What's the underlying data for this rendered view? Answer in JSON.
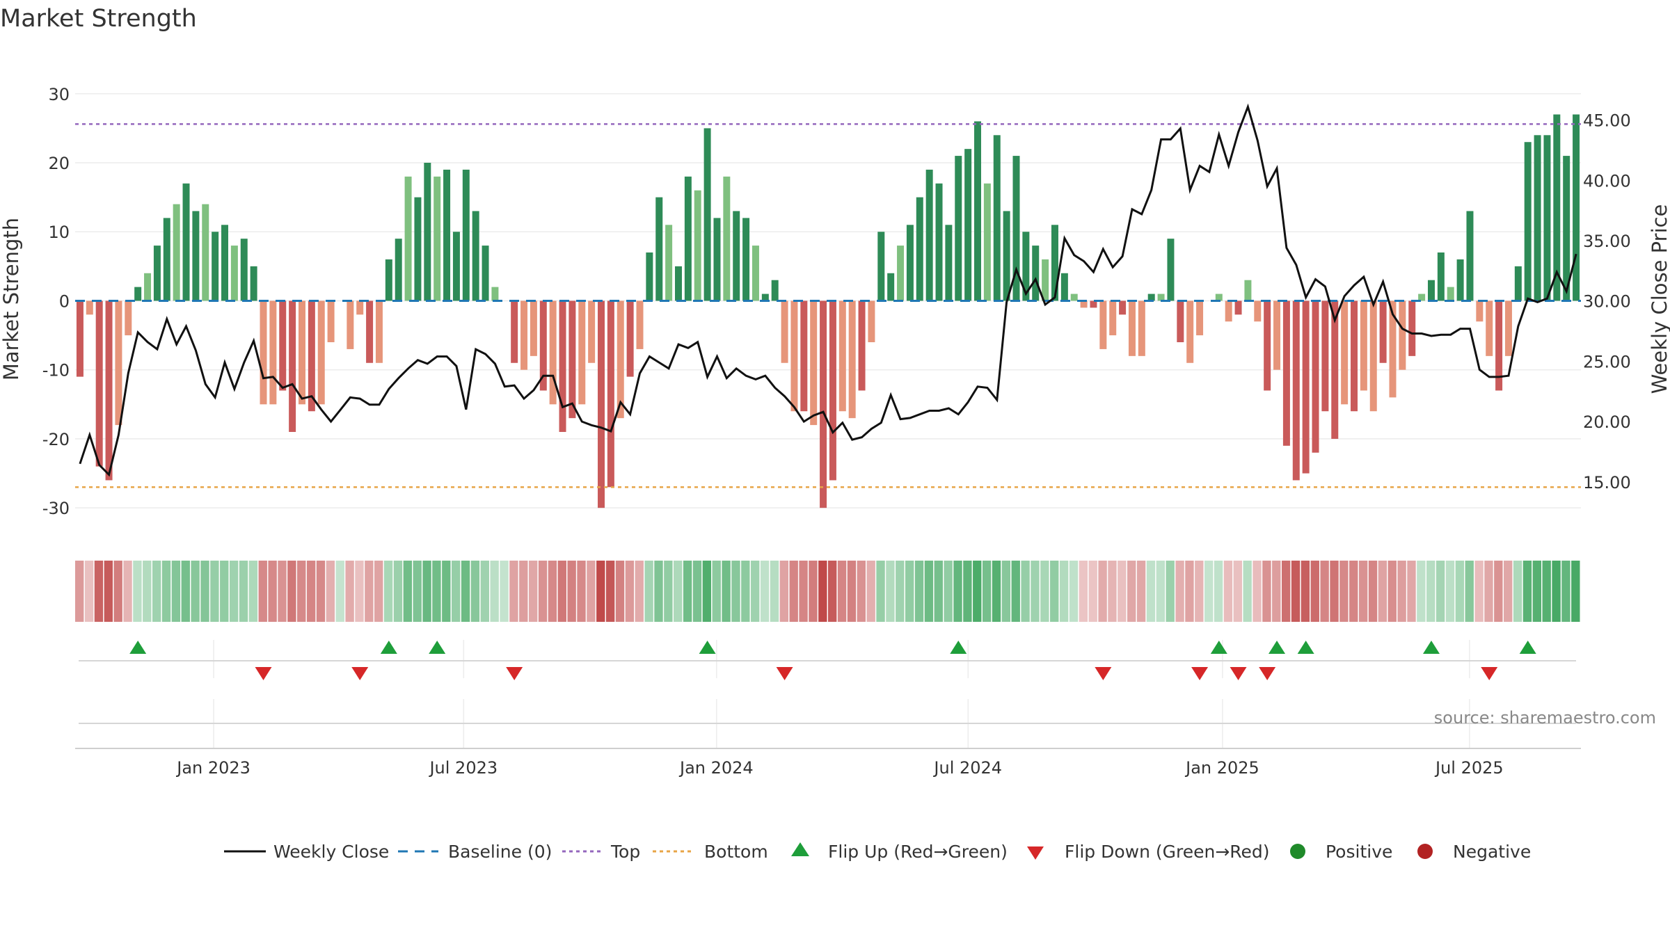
{
  "chart_data": {
    "type": "bar",
    "title": "Market Strength",
    "ylabel": "Market Strength",
    "y2label": "Weekly Close Price",
    "ylim": [
      -32,
      33
    ],
    "y2lim": [
      11.7,
      48.9
    ],
    "yticks": [
      30,
      20,
      10,
      0,
      -10,
      -20,
      -30
    ],
    "y2ticks": [
      "45.00",
      "40.00",
      "35.00",
      "30.00",
      "25.00",
      "20.00",
      "15.00"
    ],
    "top_line": 25.6,
    "bottom_line": -27.0,
    "baseline": 0,
    "xticks": [
      "Jan 2023",
      "Jul 2023",
      "Jan 2024",
      "Jul 2024",
      "Jan 2025",
      "Jul 2025"
    ],
    "strength": [
      -11,
      -2,
      -24,
      -26,
      -18,
      -5,
      2,
      4,
      8,
      12,
      14,
      17,
      13,
      14,
      10,
      11,
      8,
      9,
      5,
      -15,
      -15,
      -13,
      -19,
      -15,
      -16,
      -15,
      -6,
      0,
      -7,
      -2,
      -9,
      -9,
      6,
      9,
      18,
      15,
      20,
      18,
      19,
      10,
      19,
      13,
      8,
      2,
      0,
      -9,
      -10,
      -8,
      -13,
      -15,
      -19,
      -17,
      -15,
      -9,
      -30,
      -27,
      -17,
      -11,
      -7,
      7,
      15,
      11,
      5,
      18,
      16,
      25,
      12,
      18,
      13,
      12,
      8,
      1,
      3,
      -9,
      -16,
      -16,
      -18,
      -30,
      -26,
      -16,
      -17,
      -13,
      -6,
      10,
      4,
      8,
      11,
      15,
      19,
      17,
      11,
      21,
      22,
      26,
      17,
      24,
      13,
      21,
      10,
      8,
      6,
      11,
      4,
      1,
      -1,
      -1,
      -7,
      -5,
      -2,
      -8,
      -8,
      1,
      1,
      9,
      -6,
      -9,
      -5,
      0,
      1,
      -3,
      -2,
      3,
      -3,
      -13,
      -10,
      -21,
      -26,
      -25,
      -22,
      -16,
      -20,
      -15,
      -16,
      -13,
      -16,
      -9,
      -14,
      -10,
      -8,
      1,
      3,
      7,
      2,
      6,
      13,
      -3,
      -8,
      -13,
      -8,
      5,
      23,
      24,
      24,
      27,
      21,
      27
    ],
    "weekly_close": [
      16.5,
      18.9,
      16.4,
      15.6,
      18.9,
      24.0,
      27.4,
      26.6,
      26.0,
      28.5,
      26.4,
      27.9,
      25.9,
      23.1,
      22.0,
      24.9,
      22.7,
      24.9,
      26.7,
      23.6,
      23.7,
      22.8,
      23.1,
      21.9,
      22.1,
      21.0,
      20.0,
      21.0,
      22.0,
      21.9,
      21.4,
      21.4,
      22.7,
      23.6,
      24.4,
      25.1,
      24.8,
      25.4,
      25.4,
      24.6,
      21.0,
      26.0,
      25.6,
      24.8,
      22.9,
      23.0,
      21.9,
      22.6,
      23.8,
      23.8,
      21.2,
      21.5,
      20.0,
      19.7,
      19.5,
      19.2,
      21.6,
      20.6,
      24.0,
      25.4,
      24.9,
      24.4,
      26.4,
      26.1,
      26.6,
      23.7,
      25.4,
      23.6,
      24.4,
      23.8,
      23.5,
      23.8,
      22.8,
      22.1,
      21.2,
      20.0,
      20.5,
      20.8,
      19.1,
      19.9,
      18.5,
      18.7,
      19.4,
      19.9,
      22.2,
      20.2,
      20.3,
      20.6,
      20.9,
      20.9,
      21.1,
      20.6,
      21.6,
      22.9,
      22.8,
      21.8,
      29.9,
      32.6,
      30.6,
      31.8,
      29.7,
      30.3,
      35.2,
      33.8,
      33.3,
      32.4,
      34.3,
      32.8,
      33.7,
      37.6,
      37.2,
      39.2,
      43.4,
      43.4,
      44.3,
      39.2,
      41.2,
      40.7,
      43.8,
      41.2,
      44.0,
      46.1,
      43.3,
      39.5,
      41.0,
      34.4,
      33.0,
      30.3,
      31.8,
      31.2,
      28.4,
      30.4,
      31.3,
      32.0,
      29.7,
      31.6,
      28.9,
      27.7,
      27.3,
      27.3,
      27.1,
      27.2,
      27.2,
      27.7,
      27.7,
      24.3,
      23.7,
      23.7,
      23.8,
      27.9,
      30.2,
      29.9,
      30.2,
      32.4,
      30.8,
      33.9
    ],
    "flip_up": [
      6,
      32,
      37,
      65,
      91,
      118,
      124,
      127,
      140,
      150
    ],
    "flip_down": [
      19,
      29,
      45,
      73,
      106,
      116,
      120,
      123,
      146
    ],
    "legend": [
      "Weekly Close",
      "Baseline (0)",
      "Top",
      "Bottom",
      "Flip Up (Red→Green)",
      "Flip Down (Green→Red)",
      "Positive",
      "Negative"
    ],
    "colors": {
      "pos_dark": "#2e8b57",
      "pos_light": "#7fc07f",
      "neg_dark": "#c95a5a",
      "neg_light": "#e6957a",
      "line": "#111111",
      "baseline": "#1f77b4",
      "top": "#9467bd",
      "bottom": "#e8a547",
      "flip_up": "#1e9e3a",
      "flip_down": "#d62728",
      "positive": "#1f8a2a",
      "negative": "#b22222"
    }
  },
  "source": "source: sharemaestro.com"
}
